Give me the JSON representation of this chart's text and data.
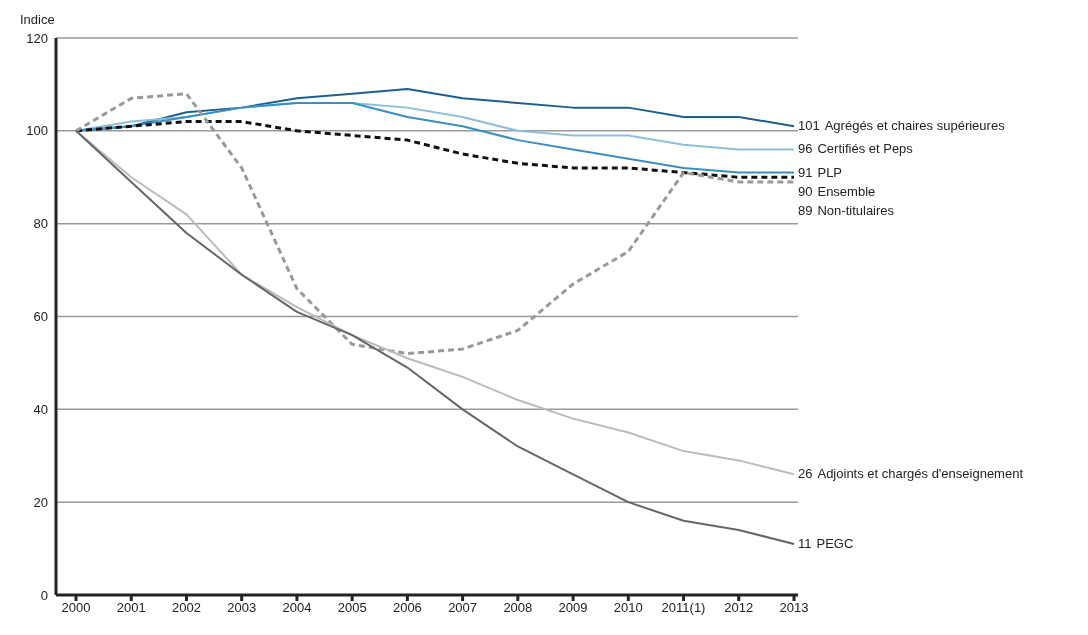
{
  "chart_data": {
    "type": "line",
    "ylabel": "Indice",
    "categories": [
      "2000",
      "2001",
      "2002",
      "2003",
      "2004",
      "2005",
      "2006",
      "2007",
      "2008",
      "2009",
      "2010",
      "2011(1)",
      "2012",
      "2013"
    ],
    "ylim": [
      0,
      120
    ],
    "yticks": [
      0,
      20,
      40,
      60,
      80,
      100,
      120
    ],
    "grid": "y",
    "marker": "none",
    "series": [
      {
        "name": "Agrégés et chaires supérieures",
        "color": "#1f5f8b",
        "line_style": "solid",
        "values": [
          100,
          101,
          104,
          105,
          107,
          108,
          109,
          107,
          106,
          105,
          105,
          103,
          103,
          101
        ],
        "value_labels": [
          null,
          null,
          null,
          null,
          null,
          null,
          null,
          null,
          null,
          null,
          null,
          null,
          null,
          "101"
        ]
      },
      {
        "name": "Certifiés et Peps",
        "color": "#8dbfd6",
        "line_style": "solid",
        "values": [
          100,
          102,
          103,
          105,
          106,
          106,
          105,
          103,
          100,
          99,
          99,
          97,
          96,
          96
        ],
        "value_labels": [
          null,
          null,
          null,
          null,
          null,
          null,
          null,
          null,
          null,
          null,
          null,
          null,
          null,
          "96"
        ]
      },
      {
        "name": "PLP",
        "color": "#3a8fc0",
        "line_style": "solid",
        "values": [
          100,
          101,
          103,
          105,
          106,
          106,
          103,
          101,
          98,
          96,
          94,
          92,
          91,
          91
        ],
        "value_labels": [
          null,
          null,
          null,
          null,
          null,
          null,
          null,
          null,
          null,
          null,
          null,
          null,
          null,
          "91"
        ]
      },
      {
        "name": "Ensemble",
        "color": "#111111",
        "line_style": "dashed",
        "values": [
          100,
          101,
          102,
          102,
          100,
          99,
          98,
          95,
          93,
          92,
          92,
          91,
          90,
          90
        ],
        "value_labels": [
          null,
          null,
          null,
          null,
          null,
          null,
          null,
          null,
          null,
          null,
          null,
          null,
          null,
          "90"
        ]
      },
      {
        "name": "Non-titulaires",
        "color": "#999999",
        "line_style": "dashed",
        "values": [
          100,
          107,
          108,
          92,
          66,
          54,
          52,
          53,
          57,
          67,
          74,
          91,
          89,
          89
        ],
        "value_labels": [
          null,
          null,
          null,
          null,
          null,
          null,
          null,
          null,
          null,
          null,
          null,
          null,
          null,
          "89"
        ]
      },
      {
        "name": "Adjoints et chargés d'enseignement",
        "color": "#bbbbbb",
        "line_style": "solid",
        "values": [
          100,
          90,
          82,
          69,
          62,
          56,
          51,
          47,
          42,
          38,
          35,
          31,
          29,
          26
        ],
        "value_labels": [
          null,
          null,
          null,
          null,
          null,
          null,
          null,
          null,
          null,
          null,
          null,
          null,
          null,
          "26"
        ]
      },
      {
        "name": "PEGC",
        "color": "#666666",
        "line_style": "solid",
        "values": [
          100,
          89,
          78,
          69,
          61,
          56,
          49,
          40,
          32,
          26,
          20,
          16,
          14,
          11
        ],
        "value_labels": [
          null,
          null,
          null,
          null,
          null,
          null,
          null,
          null,
          null,
          null,
          null,
          null,
          null,
          "11"
        ]
      }
    ]
  }
}
